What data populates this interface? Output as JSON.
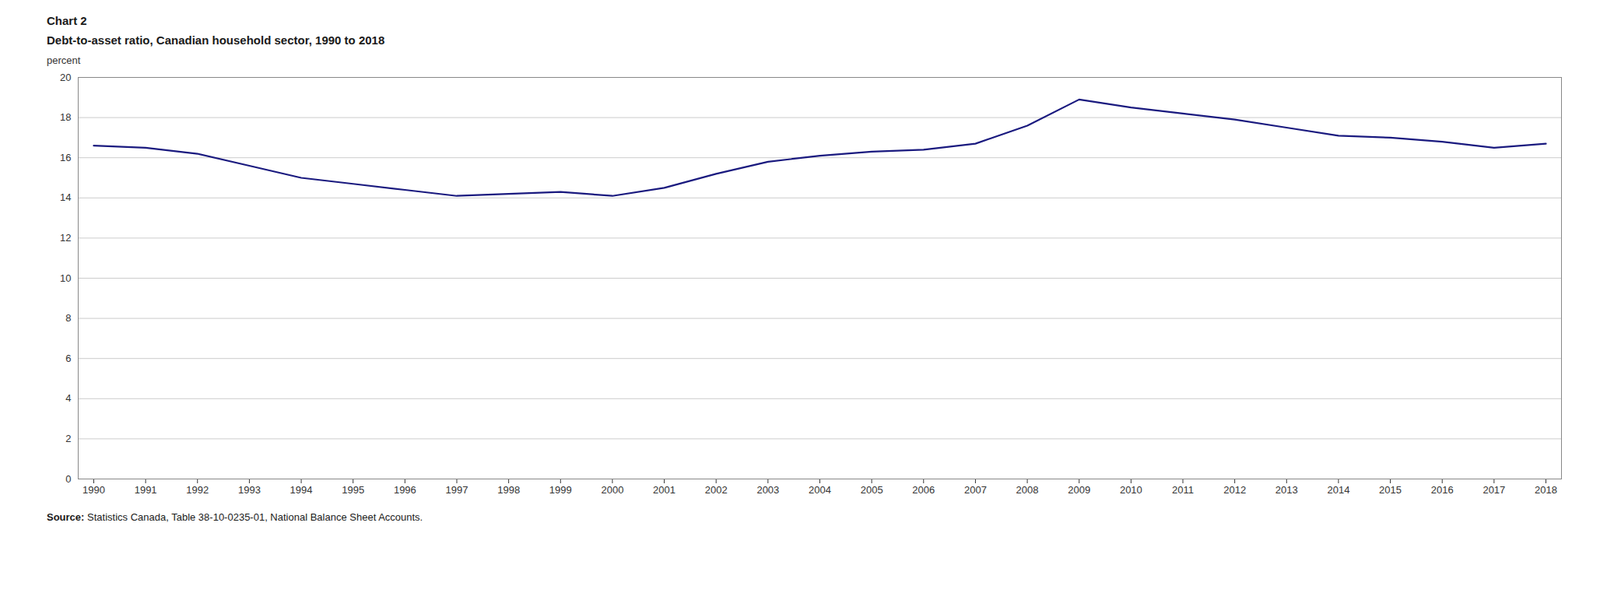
{
  "chart_data": {
    "type": "line",
    "chart_label": "Chart 2",
    "title": "Debt-to-asset ratio, Canadian household sector, 1990 to 2018",
    "ylabel": "percent",
    "source_label": "Source:",
    "source": "Statistics Canada, Table 38-10-0235-01, National Balance Sheet Accounts.",
    "x": [
      1990,
      1991,
      1992,
      1993,
      1994,
      1995,
      1996,
      1997,
      1998,
      1999,
      2000,
      2001,
      2002,
      2003,
      2004,
      2005,
      2006,
      2007,
      2008,
      2009,
      2010,
      2011,
      2012,
      2013,
      2014,
      2015,
      2016,
      2017,
      2018
    ],
    "values": [
      16.6,
      16.5,
      16.2,
      15.6,
      15.0,
      14.7,
      14.4,
      14.1,
      14.2,
      14.3,
      14.1,
      14.5,
      15.2,
      15.8,
      16.1,
      16.3,
      16.4,
      16.7,
      17.6,
      18.9,
      18.5,
      18.2,
      17.9,
      17.5,
      17.1,
      17.0,
      16.8,
      16.5,
      16.7
    ],
    "color": "#1a1a7f",
    "xlim": [
      1989.7,
      2018.3
    ],
    "xticks": [
      1990,
      1991,
      1992,
      1993,
      1994,
      1995,
      1996,
      1997,
      1998,
      1999,
      2000,
      2001,
      2002,
      2003,
      2004,
      2005,
      2006,
      2007,
      2008,
      2009,
      2010,
      2011,
      2012,
      2013,
      2014,
      2015,
      2016,
      2017,
      2018
    ],
    "ylim": [
      0,
      20
    ],
    "yticks": [
      0,
      2,
      4,
      6,
      8,
      10,
      12,
      14,
      16,
      18,
      20
    ],
    "grid": true
  }
}
